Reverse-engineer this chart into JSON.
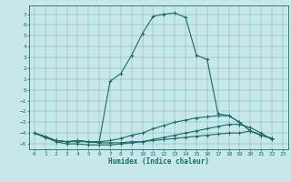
{
  "xlabel": "Humidex (Indice chaleur)",
  "xlim": [
    -0.5,
    23.5
  ],
  "ylim": [
    -5.5,
    7.8
  ],
  "yticks": [
    7,
    6,
    5,
    4,
    3,
    2,
    1,
    0,
    -1,
    -2,
    -3,
    -4,
    -5
  ],
  "xticks": [
    0,
    1,
    2,
    3,
    4,
    5,
    6,
    7,
    8,
    9,
    10,
    11,
    12,
    13,
    14,
    15,
    16,
    17,
    18,
    19,
    20,
    21,
    22,
    23
  ],
  "bg_color": "#c6e8e8",
  "line_color": "#1a6b6b",
  "line1_x": [
    0,
    1,
    2,
    3,
    4,
    5,
    6,
    7,
    8,
    9,
    10,
    11,
    12,
    13,
    14,
    15,
    16,
    17,
    18,
    19,
    20,
    21,
    22
  ],
  "line1_y": [
    -4.0,
    -4.4,
    -4.7,
    -4.8,
    -4.7,
    -4.8,
    -4.8,
    0.8,
    1.5,
    3.2,
    5.2,
    6.8,
    7.0,
    7.1,
    6.7,
    3.2,
    2.8,
    -2.2,
    -2.4,
    -3.0,
    -3.8,
    -4.2,
    -4.5
  ],
  "line2_x": [
    0,
    1,
    2,
    3,
    4,
    5,
    6,
    7,
    8,
    9,
    10,
    11,
    12,
    13,
    14,
    15,
    16,
    17,
    18,
    19,
    20,
    21,
    22
  ],
  "line2_y": [
    -4.0,
    -4.4,
    -4.7,
    -4.8,
    -4.7,
    -4.8,
    -4.8,
    -4.7,
    -4.5,
    -4.2,
    -4.0,
    -3.6,
    -3.3,
    -3.0,
    -2.8,
    -2.6,
    -2.5,
    -2.4,
    -2.4,
    -3.0,
    -3.8,
    -4.2,
    -4.5
  ],
  "line3_x": [
    0,
    1,
    2,
    3,
    4,
    5,
    6,
    7,
    8,
    9,
    10,
    11,
    12,
    13,
    14,
    15,
    16,
    17,
    18,
    19,
    20,
    21,
    22
  ],
  "line3_y": [
    -4.0,
    -4.3,
    -4.7,
    -4.8,
    -4.8,
    -4.8,
    -4.9,
    -4.9,
    -4.9,
    -4.8,
    -4.8,
    -4.7,
    -4.6,
    -4.5,
    -4.4,
    -4.3,
    -4.2,
    -4.1,
    -4.0,
    -4.0,
    -3.8,
    -4.2,
    -4.5
  ],
  "line4_x": [
    0,
    1,
    2,
    3,
    4,
    5,
    6,
    7,
    8,
    9,
    10,
    11,
    12,
    13,
    14,
    15,
    16,
    17,
    18,
    19,
    20,
    21,
    22
  ],
  "line4_y": [
    -4.0,
    -4.4,
    -4.8,
    -5.0,
    -5.0,
    -5.1,
    -5.1,
    -5.1,
    -5.0,
    -4.9,
    -4.8,
    -4.6,
    -4.4,
    -4.2,
    -4.0,
    -3.8,
    -3.6,
    -3.4,
    -3.2,
    -3.2,
    -3.5,
    -4.0,
    -4.6
  ]
}
